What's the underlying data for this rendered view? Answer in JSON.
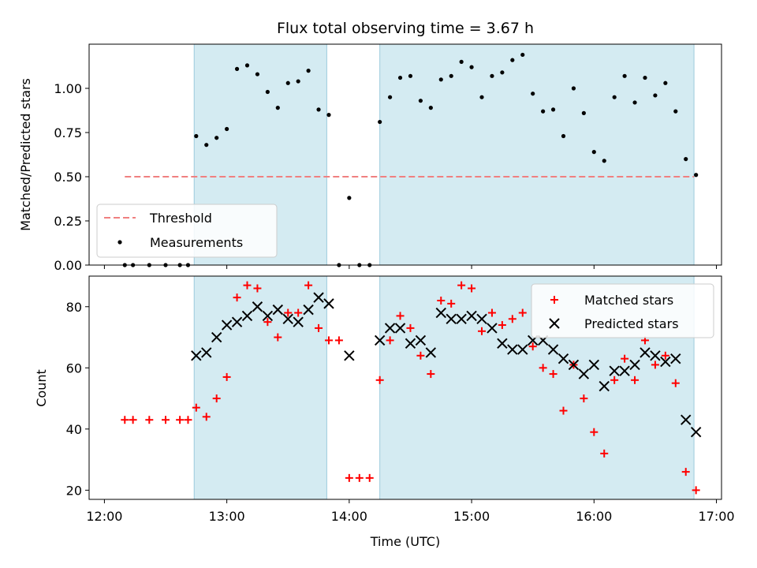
{
  "chart_data": [
    {
      "type": "scatter",
      "title": "Flux total observing time = 3.67 h",
      "xlabel": "",
      "ylabel": "Matched/Predicted stars",
      "xlim": [
        "12:00",
        "17:00"
      ],
      "ylim": [
        0,
        1.25
      ],
      "yticks": [
        "0.00",
        "0.25",
        "0.50",
        "0.75",
        "1.00"
      ],
      "shaded_intervals": [
        [
          "12:44",
          "13:49"
        ],
        [
          "14:15",
          "16:49"
        ]
      ],
      "legend_position": "lower-left",
      "threshold": {
        "name": "Threshold",
        "value": 0.5,
        "x_range": [
          "12:10",
          "16:49"
        ],
        "color": "#f08080"
      },
      "series": [
        {
          "name": "Measurements",
          "color": "#000000",
          "x": [
            "12:10",
            "12:14",
            "12:22",
            "12:30",
            "12:37",
            "12:41",
            "12:45",
            "12:50",
            "12:55",
            "13:00",
            "13:05",
            "13:10",
            "13:15",
            "13:20",
            "13:25",
            "13:30",
            "13:35",
            "13:40",
            "13:45",
            "13:50",
            "13:55",
            "14:00",
            "14:05",
            "14:10",
            "14:15",
            "14:20",
            "14:25",
            "14:30",
            "14:35",
            "14:40",
            "14:45",
            "14:50",
            "14:55",
            "15:00",
            "15:05",
            "15:10",
            "15:15",
            "15:20",
            "15:25",
            "15:30",
            "15:35",
            "15:40",
            "15:45",
            "15:50",
            "15:55",
            "16:00",
            "16:05",
            "16:10",
            "16:15",
            "16:20",
            "16:25",
            "16:30",
            "16:35",
            "16:40",
            "16:45",
            "16:50"
          ],
          "y": [
            0,
            0,
            0,
            0,
            0,
            0,
            0.73,
            0.68,
            0.72,
            0.77,
            1.11,
            1.13,
            1.08,
            0.98,
            0.89,
            1.03,
            1.04,
            1.1,
            0.88,
            0.85,
            0,
            0.38,
            0,
            0,
            0.81,
            0.95,
            1.06,
            1.07,
            0.93,
            0.89,
            1.05,
            1.07,
            1.15,
            1.12,
            0.95,
            1.07,
            1.09,
            1.16,
            1.19,
            0.97,
            0.87,
            0.88,
            0.73,
            1.0,
            0.86,
            0.64,
            0.59,
            0.95,
            1.07,
            0.92,
            1.06,
            0.96,
            1.03,
            0.87,
            0.6,
            0.51
          ]
        }
      ]
    },
    {
      "type": "scatter",
      "title": "",
      "xlabel": "Time (UTC)",
      "ylabel": "Count",
      "xlim": [
        "12:00",
        "17:00"
      ],
      "ylim": [
        17,
        90
      ],
      "xticks": [
        "12:00",
        "13:00",
        "14:00",
        "15:00",
        "16:00",
        "17:00"
      ],
      "yticks": [
        "20",
        "40",
        "60",
        "80"
      ],
      "shaded_intervals": [
        [
          "12:44",
          "13:49"
        ],
        [
          "14:15",
          "16:49"
        ]
      ],
      "legend_position": "upper-right",
      "series": [
        {
          "name": "Matched stars",
          "color": "#ff0000",
          "marker": "plus",
          "x": [
            "12:10",
            "12:14",
            "12:22",
            "12:30",
            "12:37",
            "12:41",
            "12:45",
            "12:50",
            "12:55",
            "13:00",
            "13:05",
            "13:10",
            "13:15",
            "13:20",
            "13:25",
            "13:30",
            "13:35",
            "13:40",
            "13:45",
            "13:50",
            "13:55",
            "14:00",
            "14:05",
            "14:10",
            "14:15",
            "14:20",
            "14:25",
            "14:30",
            "14:35",
            "14:40",
            "14:45",
            "14:50",
            "14:55",
            "15:00",
            "15:05",
            "15:10",
            "15:15",
            "15:20",
            "15:25",
            "15:30",
            "15:35",
            "15:40",
            "15:45",
            "15:50",
            "15:55",
            "16:00",
            "16:05",
            "16:10",
            "16:15",
            "16:20",
            "16:25",
            "16:30",
            "16:35",
            "16:40",
            "16:45",
            "16:50"
          ],
          "y": [
            43,
            43,
            43,
            43,
            43,
            43,
            47,
            44,
            50,
            57,
            83,
            87,
            86,
            75,
            70,
            78,
            78,
            87,
            73,
            69,
            69,
            24,
            24,
            24,
            56,
            69,
            77,
            73,
            64,
            58,
            82,
            81,
            87,
            86,
            72,
            78,
            74,
            76,
            78,
            67,
            60,
            58,
            46,
            61,
            50,
            39,
            32,
            56,
            63,
            56,
            69,
            61,
            64,
            55,
            26,
            20
          ]
        },
        {
          "name": "Predicted stars",
          "color": "#000000",
          "marker": "x",
          "x": [
            "12:45",
            "12:50",
            "12:55",
            "13:00",
            "13:05",
            "13:10",
            "13:15",
            "13:20",
            "13:25",
            "13:30",
            "13:35",
            "13:40",
            "13:45",
            "13:50",
            "14:00",
            "14:15",
            "14:20",
            "14:25",
            "14:30",
            "14:35",
            "14:40",
            "14:45",
            "14:50",
            "14:55",
            "15:00",
            "15:05",
            "15:10",
            "15:15",
            "15:20",
            "15:25",
            "15:30",
            "15:35",
            "15:40",
            "15:45",
            "15:50",
            "15:55",
            "16:00",
            "16:05",
            "16:10",
            "16:15",
            "16:20",
            "16:25",
            "16:30",
            "16:35",
            "16:40",
            "16:45",
            "16:50"
          ],
          "y": [
            64,
            65,
            70,
            74,
            75,
            77,
            80,
            77,
            79,
            76,
            75,
            79,
            83,
            81,
            64,
            69,
            73,
            73,
            68,
            69,
            65,
            78,
            76,
            76,
            77,
            76,
            73,
            68,
            66,
            66,
            69,
            69,
            66,
            63,
            61,
            58,
            61,
            54,
            59,
            59,
            61,
            65,
            64,
            62,
            63,
            43,
            39
          ]
        }
      ]
    }
  ]
}
